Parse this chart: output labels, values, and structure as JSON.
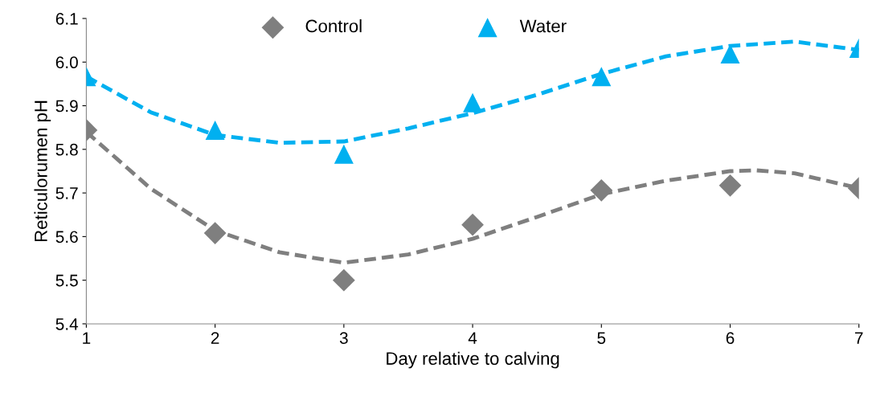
{
  "chart_data": {
    "type": "scatter",
    "xlabel": "Day relative to calving",
    "ylabel": "Reticulorumen pH",
    "x": [
      1,
      2,
      3,
      4,
      5,
      6,
      7
    ],
    "series": [
      {
        "name": "Control",
        "color": "#7f7f7f",
        "marker": "diamond",
        "values": [
          5.844,
          5.608,
          5.5,
          5.627,
          5.706,
          5.717,
          5.711
        ]
      },
      {
        "name": "Water",
        "color": "#00b0f0",
        "marker": "triangle",
        "values": [
          5.967,
          5.844,
          5.789,
          5.907,
          5.967,
          6.019,
          6.032
        ]
      },
      {
        "type": "line",
        "color": "#7f7f7f",
        "line_style": "dashed",
        "x": [
          1,
          1.5,
          2,
          2.5,
          3,
          3.5,
          4,
          4.5,
          5,
          5.5,
          6,
          6.2,
          6.5,
          7
        ],
        "values": [
          5.84,
          5.71,
          5.614,
          5.564,
          5.54,
          5.559,
          5.595,
          5.645,
          5.697,
          5.728,
          5.75,
          5.752,
          5.745,
          5.711
        ]
      },
      {
        "type": "line",
        "color": "#00b0f0",
        "line_style": "dashed",
        "x": [
          1,
          1.5,
          2,
          2.5,
          3,
          3.5,
          4,
          4.5,
          5,
          5.5,
          6,
          6.5,
          7
        ],
        "values": [
          5.967,
          5.885,
          5.833,
          5.815,
          5.818,
          5.848,
          5.883,
          5.925,
          5.973,
          6.013,
          6.037,
          6.047,
          6.028
        ]
      }
    ],
    "xlim": [
      1,
      7
    ],
    "xticks": [
      1,
      2,
      3,
      4,
      5,
      6,
      7
    ],
    "ylim": [
      5.4,
      6.1
    ],
    "yticks": [
      {
        "value": 5.4,
        "label": "5.4"
      },
      {
        "value": 5.5,
        "label": "5.5"
      },
      {
        "value": 5.6,
        "label": "5.6"
      },
      {
        "value": 5.7,
        "label": "5.7"
      },
      {
        "value": 5.8,
        "label": "5.8"
      },
      {
        "value": 5.9,
        "label": "5.9"
      },
      {
        "value": 6.0,
        "label": "6.0"
      },
      {
        "value": 6.1,
        "label": "6.1"
      }
    ],
    "legend": "top",
    "grid": false
  }
}
